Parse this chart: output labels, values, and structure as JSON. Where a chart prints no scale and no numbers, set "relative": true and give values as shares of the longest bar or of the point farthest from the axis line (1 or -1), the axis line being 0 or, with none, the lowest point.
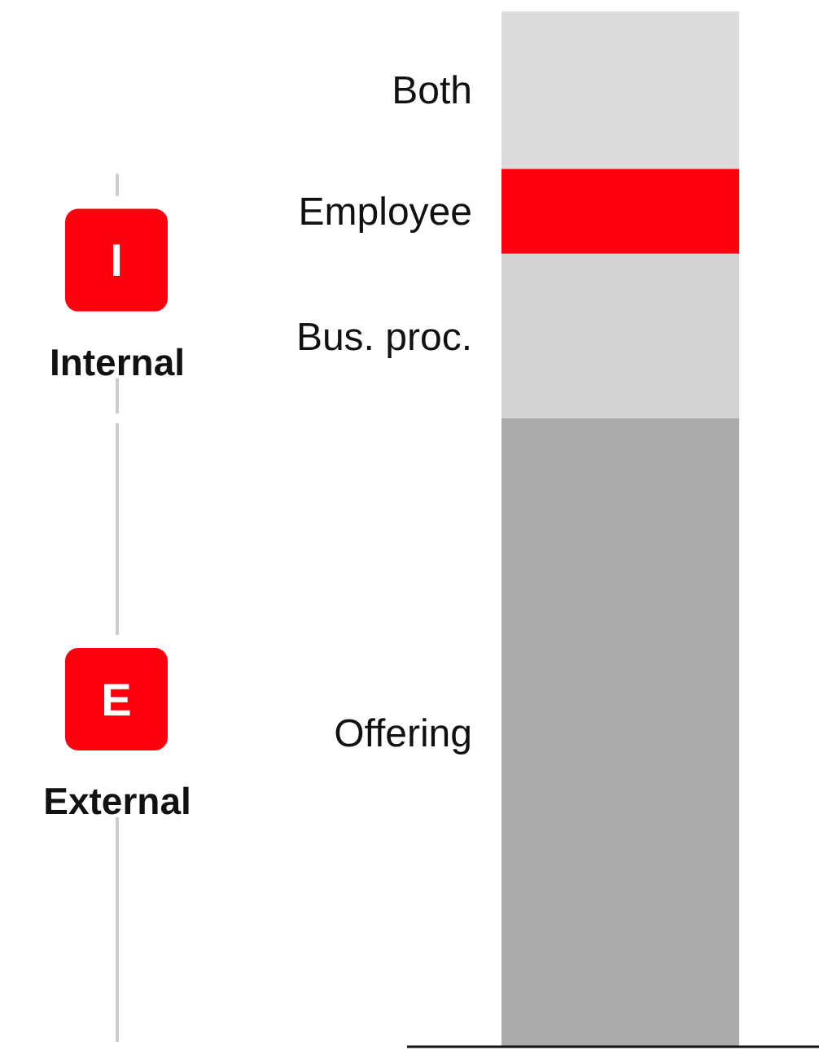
{
  "chart_data": {
    "type": "bar",
    "stacked": true,
    "relative": true,
    "categories": [
      null
    ],
    "series": [
      {
        "name": "Offering",
        "color": "#ababab",
        "values": [
          0.607
        ]
      },
      {
        "name": "Bus. proc.",
        "color": "#d3d3d3",
        "values": [
          0.159
        ]
      },
      {
        "name": "Employee",
        "color": "#ff0011",
        "values": [
          0.082
        ]
      },
      {
        "name": "Both",
        "color": "#dcdcdc",
        "values": [
          0.152
        ]
      }
    ],
    "annotations": [
      "I",
      "Internal",
      "E",
      "External"
    ],
    "legend": false
  }
}
